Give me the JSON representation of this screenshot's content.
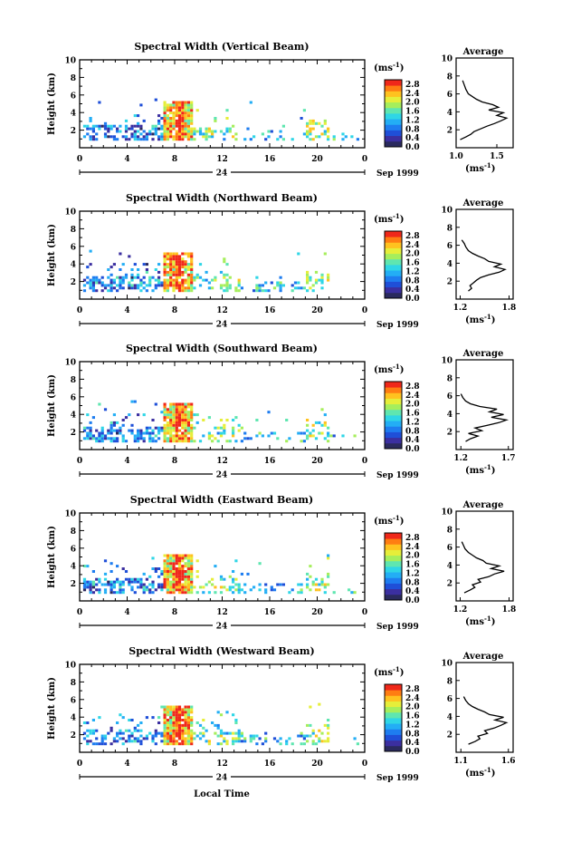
{
  "figure": {
    "xlabel": "Local Time",
    "date_label": "Sep 1999",
    "day_label": "24",
    "colorbar_unit": "(ms",
    "colorbar_unit_sup": "-1",
    "colorbar_unit_close": ")",
    "colorbar_ticks": [
      "0.0",
      "0.4",
      "0.8",
      "1.2",
      "1.6",
      "2.0",
      "2.4",
      "2.8"
    ],
    "avg_title": "Average",
    "avg_unit": "(ms",
    "avg_unit_sup": "-1",
    "avg_unit_close": ")",
    "ylabel": "Height (km)",
    "yticks": [
      "2",
      "4",
      "6",
      "8",
      "10"
    ],
    "xticks": [
      "0",
      "4",
      "8",
      "12",
      "16",
      "20",
      "0"
    ],
    "colormap": [
      "#2a2a5e",
      "#3b2fa0",
      "#1f4fd8",
      "#1e7df0",
      "#23aef5",
      "#2fd6e6",
      "#5fe6b0",
      "#a6ee5c",
      "#e6ee3a",
      "#ffc21f",
      "#ff7d12",
      "#f0281a"
    ],
    "colors": {
      "max_red": "#f0281a",
      "line": "#000000"
    }
  },
  "panels": [
    {
      "title": "Spectral Width (Vertical Beam)",
      "avg_xticks": [
        "1.0",
        "1.5"
      ],
      "avg_range": [
        1.0,
        1.7
      ]
    },
    {
      "title": "Spectral Width (Northward Beam)",
      "avg_xticks": [
        "1.2",
        "1.8"
      ],
      "avg_range": [
        1.15,
        1.85
      ]
    },
    {
      "title": "Spectral Width (Southward Beam)",
      "avg_xticks": [
        "1.2",
        "1.7"
      ],
      "avg_range": [
        1.15,
        1.75
      ]
    },
    {
      "title": "Spectral Width (Eastward Beam)",
      "avg_xticks": [
        "1.2",
        "1.8"
      ],
      "avg_range": [
        1.15,
        1.85
      ]
    },
    {
      "title": "Spectral Width (Westward Beam)",
      "avg_xticks": [
        "1.1",
        "1.6"
      ],
      "avg_range": [
        1.05,
        1.65
      ]
    }
  ],
  "chart_data": [
    {
      "type": "heatmap",
      "title": "Spectral Width (Vertical Beam)",
      "xlabel": "",
      "ylabel": "Height (km)",
      "xlim": [
        0,
        24
      ],
      "ylim": [
        0,
        10
      ],
      "colorbar_range": [
        0.0,
        2.8
      ],
      "profile": {
        "type": "line",
        "title": "Average",
        "xlabel": "(ms-1)",
        "xlim": [
          1.0,
          1.7
        ],
        "ylim": [
          0,
          10
        ],
        "x": [
          1.05,
          1.12,
          1.18,
          1.22,
          1.3,
          1.38,
          1.47,
          1.55,
          1.62,
          1.5,
          1.58,
          1.4,
          1.52,
          1.45,
          1.32,
          1.25,
          1.2,
          1.15,
          1.12,
          1.1,
          1.08
        ],
        "y": [
          0.9,
          1.2,
          1.5,
          1.8,
          2.1,
          2.4,
          2.7,
          3.0,
          3.3,
          3.6,
          3.9,
          4.2,
          4.5,
          4.8,
          5.1,
          5.4,
          5.7,
          6.0,
          6.5,
          7.0,
          7.5
        ]
      }
    },
    {
      "type": "heatmap",
      "title": "Spectral Width (Northward Beam)",
      "xlabel": "",
      "ylabel": "Height (km)",
      "xlim": [
        0,
        24
      ],
      "ylim": [
        0,
        10
      ],
      "colorbar_range": [
        0.0,
        2.8
      ],
      "profile": {
        "type": "line",
        "title": "Average",
        "xlabel": "(ms-1)",
        "xlim": [
          1.15,
          1.85
        ],
        "ylim": [
          0,
          10
        ],
        "x": [
          1.3,
          1.34,
          1.32,
          1.36,
          1.4,
          1.45,
          1.55,
          1.68,
          1.75,
          1.62,
          1.7,
          1.55,
          1.5,
          1.42,
          1.35,
          1.3,
          1.27,
          1.25,
          1.22
        ],
        "y": [
          0.9,
          1.2,
          1.5,
          1.8,
          2.1,
          2.4,
          2.7,
          3.0,
          3.3,
          3.6,
          3.9,
          4.2,
          4.5,
          4.8,
          5.1,
          5.4,
          5.8,
          6.2,
          6.6
        ]
      }
    },
    {
      "type": "heatmap",
      "title": "Spectral Width (Southward Beam)",
      "xlabel": "",
      "ylabel": "Height (km)",
      "xlim": [
        0,
        24
      ],
      "ylim": [
        0,
        10
      ],
      "colorbar_range": [
        0.0,
        2.8
      ],
      "profile": {
        "type": "line",
        "title": "Average",
        "xlabel": "(ms-1)",
        "xlim": [
          1.15,
          1.75
        ],
        "ylim": [
          0,
          10
        ],
        "x": [
          1.25,
          1.3,
          1.38,
          1.28,
          1.42,
          1.35,
          1.48,
          1.6,
          1.68,
          1.52,
          1.65,
          1.5,
          1.58,
          1.4,
          1.3,
          1.25,
          1.22,
          1.2
        ],
        "y": [
          0.9,
          1.2,
          1.5,
          1.8,
          2.1,
          2.4,
          2.7,
          3.0,
          3.3,
          3.6,
          3.9,
          4.2,
          4.5,
          4.8,
          5.1,
          5.4,
          5.8,
          6.2
        ]
      }
    },
    {
      "type": "heatmap",
      "title": "Spectral Width (Eastward Beam)",
      "xlabel": "",
      "ylabel": "Height (km)",
      "xlim": [
        0,
        24
      ],
      "ylim": [
        0,
        10
      ],
      "colorbar_range": [
        0.0,
        2.8
      ],
      "profile": {
        "type": "line",
        "title": "Average",
        "xlabel": "(ms-1)",
        "xlim": [
          1.15,
          1.85
        ],
        "ylim": [
          0,
          10
        ],
        "x": [
          1.25,
          1.32,
          1.38,
          1.35,
          1.45,
          1.42,
          1.55,
          1.62,
          1.74,
          1.58,
          1.68,
          1.52,
          1.48,
          1.4,
          1.35,
          1.3,
          1.26,
          1.24,
          1.22
        ],
        "y": [
          0.9,
          1.2,
          1.5,
          1.8,
          2.1,
          2.4,
          2.7,
          3.0,
          3.3,
          3.6,
          3.9,
          4.2,
          4.5,
          4.8,
          5.1,
          5.4,
          5.8,
          6.2,
          6.6
        ]
      }
    },
    {
      "type": "heatmap",
      "title": "Spectral Width (Westward Beam)",
      "xlabel": "Local Time",
      "ylabel": "Height (km)",
      "xlim": [
        0,
        24
      ],
      "ylim": [
        0,
        10
      ],
      "colorbar_range": [
        0.0,
        2.8
      ],
      "profile": {
        "type": "line",
        "title": "Average",
        "xlabel": "(ms-1)",
        "xlim": [
          1.05,
          1.65
        ],
        "ylim": [
          0,
          10
        ],
        "x": [
          1.18,
          1.25,
          1.3,
          1.28,
          1.38,
          1.35,
          1.45,
          1.52,
          1.58,
          1.46,
          1.55,
          1.4,
          1.35,
          1.28,
          1.22,
          1.18,
          1.15,
          1.13
        ],
        "y": [
          0.9,
          1.2,
          1.5,
          1.8,
          2.1,
          2.4,
          2.7,
          3.0,
          3.3,
          3.6,
          3.9,
          4.2,
          4.5,
          4.8,
          5.1,
          5.4,
          5.8,
          6.2
        ]
      }
    }
  ]
}
